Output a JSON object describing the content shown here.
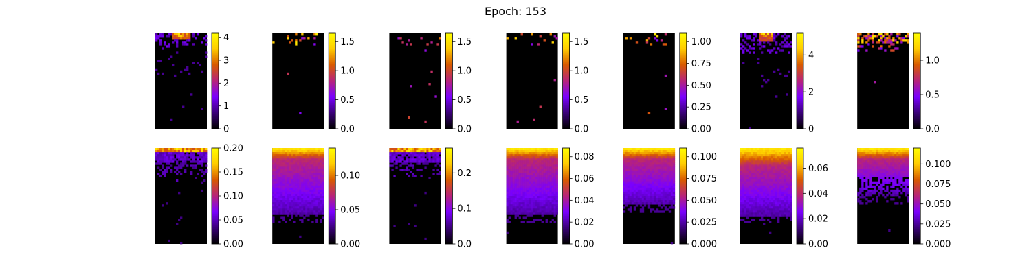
{
  "title": "Epoch: 153",
  "colormap": {
    "name": "gnuplot",
    "stops": [
      "#000000",
      "#3a0078",
      "#7a00ff",
      "#b7237a",
      "#d85a00",
      "#ffcc00",
      "#ffff00"
    ]
  },
  "chart_data": {
    "type": "heatmap",
    "title": "Epoch: 153",
    "grid": "2x7",
    "panels": [
      {
        "row": 0,
        "col": 0,
        "pattern": "sparse-hotspot",
        "vmin": 0,
        "vmax": 4.2,
        "ticks": [
          0,
          1,
          2,
          3,
          4
        ],
        "tick_labels": [
          "0",
          "1",
          "2",
          "3",
          "4"
        ]
      },
      {
        "row": 0,
        "col": 1,
        "pattern": "sparse",
        "vmin": 0,
        "vmax": 1.65,
        "ticks": [
          0,
          0.5,
          1.0,
          1.5
        ],
        "tick_labels": [
          "0.0",
          "0.5",
          "1.0",
          "1.5"
        ]
      },
      {
        "row": 0,
        "col": 2,
        "pattern": "sparse",
        "vmin": 0,
        "vmax": 1.65,
        "ticks": [
          0,
          0.5,
          1.0,
          1.5
        ],
        "tick_labels": [
          "0.0",
          "0.5",
          "1.0",
          "1.5"
        ]
      },
      {
        "row": 0,
        "col": 3,
        "pattern": "sparse",
        "vmin": 0,
        "vmax": 1.65,
        "ticks": [
          0,
          0.5,
          1.0,
          1.5
        ],
        "tick_labels": [
          "0.0",
          "0.5",
          "1.0",
          "1.5"
        ]
      },
      {
        "row": 0,
        "col": 4,
        "pattern": "sparse",
        "vmin": 0,
        "vmax": 1.1,
        "ticks": [
          0,
          0.25,
          0.5,
          0.75,
          1.0
        ],
        "tick_labels": [
          "0.00",
          "0.25",
          "0.50",
          "0.75",
          "1.00"
        ]
      },
      {
        "row": 0,
        "col": 5,
        "pattern": "sparse-hotspot-wide",
        "vmin": 0,
        "vmax": 5.2,
        "ticks": [
          0,
          2,
          4
        ],
        "tick_labels": [
          "0",
          "2",
          "4"
        ]
      },
      {
        "row": 0,
        "col": 6,
        "pattern": "sparse-top-band",
        "vmin": 0,
        "vmax": 1.4,
        "ticks": [
          0,
          0.5,
          1.0
        ],
        "tick_labels": [
          "0.0",
          "0.5",
          "1.0"
        ]
      },
      {
        "row": 1,
        "col": 0,
        "pattern": "dense-shallow",
        "vmin": 0,
        "vmax": 0.2,
        "ticks": [
          0,
          0.05,
          0.1,
          0.15,
          0.2
        ],
        "tick_labels": [
          "0.00",
          "0.05",
          "0.10",
          "0.15",
          "0.20"
        ]
      },
      {
        "row": 1,
        "col": 1,
        "pattern": "dense-deep",
        "vmin": 0,
        "vmax": 0.14,
        "ticks": [
          0,
          0.05,
          0.1
        ],
        "tick_labels": [
          "0.00",
          "0.05",
          "0.10"
        ]
      },
      {
        "row": 1,
        "col": 2,
        "pattern": "dense-shallow",
        "vmin": 0,
        "vmax": 0.27,
        "ticks": [
          0,
          0.1,
          0.2
        ],
        "tick_labels": [
          "0.0",
          "0.1",
          "0.2"
        ]
      },
      {
        "row": 1,
        "col": 3,
        "pattern": "dense-deep",
        "vmin": 0,
        "vmax": 0.088,
        "ticks": [
          0,
          0.02,
          0.04,
          0.06,
          0.08
        ],
        "tick_labels": [
          "0.00",
          "0.02",
          "0.04",
          "0.06",
          "0.08"
        ]
      },
      {
        "row": 1,
        "col": 4,
        "pattern": "dense-mid",
        "vmin": 0,
        "vmax": 0.11,
        "ticks": [
          0,
          0.025,
          0.05,
          0.075,
          0.1
        ],
        "tick_labels": [
          "0.000",
          "0.025",
          "0.050",
          "0.075",
          "0.100"
        ]
      },
      {
        "row": 1,
        "col": 5,
        "pattern": "dense-deepest",
        "vmin": 0,
        "vmax": 0.076,
        "ticks": [
          0,
          0.02,
          0.04,
          0.06
        ],
        "tick_labels": [
          "0.00",
          "0.02",
          "0.04",
          "0.06"
        ]
      },
      {
        "row": 1,
        "col": 6,
        "pattern": "dense-patchy",
        "vmin": 0,
        "vmax": 0.12,
        "ticks": [
          0,
          0.025,
          0.05,
          0.075,
          0.1
        ],
        "tick_labels": [
          "0.000",
          "0.025",
          "0.050",
          "0.075",
          "0.100"
        ]
      }
    ]
  }
}
